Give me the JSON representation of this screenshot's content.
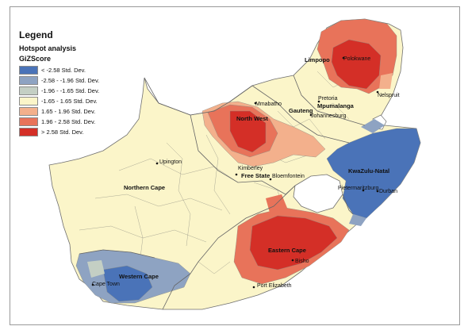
{
  "legend": {
    "title": "Legend",
    "layer": "Hotspot analysis",
    "field": "GiZScore",
    "classes": [
      {
        "label": "< -2.58 Std. Dev.",
        "color": "#4a73b8"
      },
      {
        "label": "-2.58 - -1.96 Std. Dev.",
        "color": "#8ea3c2"
      },
      {
        "label": "-1.96 - -1.65 Std. Dev.",
        "color": "#c4cfc4"
      },
      {
        "label": "-1.65 - 1.65 Std. Dev.",
        "color": "#fbf5c9"
      },
      {
        "label": "1.65 - 1.96 Std. Dev.",
        "color": "#f3b08c"
      },
      {
        "label": "1.96 - 2.58 Std. Dev.",
        "color": "#e8735a"
      },
      {
        "label": "> 2.58 Std. Dev.",
        "color": "#d42f27"
      }
    ]
  },
  "provinces": {
    "limpopo": "Limpopo",
    "mpumalanga": "Mpumalanga",
    "gauteng": "Gauteng",
    "north_west": "North West",
    "free_state": "Free State",
    "kwazulu_natal": "KwaZulu-Natal",
    "northern_cape": "Northern Cape",
    "eastern_cape": "Eastern Cape",
    "western_cape": "Western Cape"
  },
  "cities": {
    "polokwane": "Polokwane",
    "nelspruit": "Nelspruit",
    "pretoria": "Pretoria",
    "johannesburg": "Johannesburg",
    "mmabatho": "Mmabatho",
    "upington": "Upington",
    "kimberley": "Kimberley",
    "bloemfontein": "Bloemfontein",
    "pietermaritzburg": "Pietermaritzburg",
    "durban": "Durban",
    "bisho": "Bisho",
    "port_elizabeth": "Port Elizabeth",
    "cape_town": "Cape Town"
  }
}
